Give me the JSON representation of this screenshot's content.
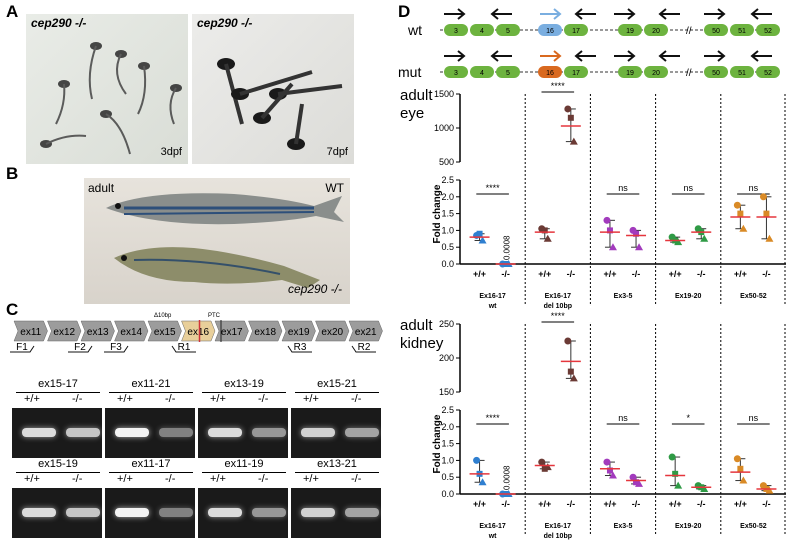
{
  "panels": {
    "A": {
      "letter": "A",
      "left_label": "cep290 -/-",
      "left_age": "3dpf",
      "right_label": "cep290 -/-",
      "right_age": "7dpf"
    },
    "B": {
      "letter": "B",
      "adult_label": "adult",
      "wt_label": "WT",
      "mut_label": "cep290 -/-"
    },
    "C": {
      "letter": "C",
      "exons": [
        "ex11",
        "ex12",
        "ex13",
        "ex14",
        "ex15",
        "ex16",
        "ex17",
        "ex18",
        "ex19",
        "ex20",
        "ex21"
      ],
      "delta_label": "Δ10bp",
      "ptc_label": "PTC",
      "primers": [
        "F1",
        "F2",
        "F3",
        "R1",
        "R3",
        "R2"
      ],
      "gel_row1": [
        "ex15-17",
        "ex11-21",
        "ex13-19",
        "ex15-21"
      ],
      "gel_row2": [
        "ex15-19",
        "ex11-17",
        "ex11-19",
        "ex13-21"
      ],
      "genotype_wt": "+/+",
      "genotype_mut": "-/-"
    },
    "D": {
      "letter": "D",
      "wt_label": "wt",
      "mut_label": "mut",
      "exons_left": [
        "3",
        "4",
        "5"
      ],
      "exons_mid": [
        "16",
        "17"
      ],
      "exons_mid2": [
        "19",
        "20"
      ],
      "exons_right": [
        "50",
        "51",
        "52"
      ],
      "break_mark": "//",
      "eye_title": "adult\neye",
      "kidney_title": "adult\nkidney",
      "ylabel": "Fold change",
      "group_labels": [
        "Ex16-17\nwt",
        "Ex16-17\ndel 10bp",
        "Ex3-5",
        "Ex19-20",
        "Ex50-52"
      ],
      "sig_eye": [
        "****",
        "****",
        "ns",
        "ns",
        "ns"
      ],
      "sig_kidney": [
        "****",
        "****",
        "ns",
        "*",
        "ns"
      ],
      "annotation_eye": "0.0008",
      "annotation_kidney": "0.0008"
    }
  },
  "chart_data": [
    {
      "type": "scatter",
      "title": "adult eye",
      "ylabel": "Fold change",
      "yticks_lower": [
        "0.0",
        "0.5",
        "1.0",
        "1.5",
        "2.0",
        "2.5"
      ],
      "yticks_upper": [
        "500",
        "1000",
        "1500"
      ],
      "groups": [
        "Ex16-17 wt",
        "Ex16-17 del 10bp",
        "Ex3-5",
        "Ex19-20",
        "Ex50-52"
      ],
      "genotypes": [
        "+/+",
        "-/-"
      ],
      "series": [
        {
          "group": "Ex16-17 wt",
          "genotype": "+/+",
          "mean": 0.8,
          "points": [
            0.85,
            0.9,
            0.7
          ]
        },
        {
          "group": "Ex16-17 wt",
          "genotype": "-/-",
          "mean": 0.0008,
          "points": [
            0.0,
            0.0,
            0.0
          ]
        },
        {
          "group": "Ex16-17 del 10bp",
          "genotype": "+/+",
          "mean": 0.95,
          "points": [
            1.05,
            1.0,
            0.75
          ]
        },
        {
          "group": "Ex16-17 del 10bp",
          "genotype": "-/-",
          "mean": 1030,
          "points": [
            1280,
            1150,
            800
          ]
        },
        {
          "group": "Ex3-5",
          "genotype": "+/+",
          "mean": 0.95,
          "points": [
            1.3,
            1.0,
            0.5
          ]
        },
        {
          "group": "Ex3-5",
          "genotype": "-/-",
          "mean": 0.85,
          "points": [
            1.0,
            0.9,
            0.5
          ]
        },
        {
          "group": "Ex19-20",
          "genotype": "+/+",
          "mean": 0.7,
          "points": [
            0.8,
            0.7,
            0.65
          ]
        },
        {
          "group": "Ex19-20",
          "genotype": "-/-",
          "mean": 0.95,
          "points": [
            1.05,
            0.95,
            0.75
          ]
        },
        {
          "group": "Ex50-52",
          "genotype": "+/+",
          "mean": 1.4,
          "points": [
            1.75,
            1.5,
            1.05
          ]
        },
        {
          "group": "Ex50-52",
          "genotype": "-/-",
          "mean": 1.4,
          "points": [
            2.0,
            1.5,
            0.75
          ]
        }
      ]
    },
    {
      "type": "scatter",
      "title": "adult kidney",
      "ylabel": "Fold change",
      "yticks_lower": [
        "0.0",
        "0.5",
        "1.0",
        "1.5",
        "2.0",
        "2.5"
      ],
      "yticks_upper": [
        "150",
        "200",
        "250"
      ],
      "groups": [
        "Ex16-17 wt",
        "Ex16-17 del 10bp",
        "Ex3-5",
        "Ex19-20",
        "Ex50-52"
      ],
      "genotypes": [
        "+/+",
        "-/-"
      ],
      "series": [
        {
          "group": "Ex16-17 wt",
          "genotype": "+/+",
          "mean": 0.6,
          "points": [
            1.0,
            0.6,
            0.35
          ]
        },
        {
          "group": "Ex16-17 wt",
          "genotype": "-/-",
          "mean": 0.0008,
          "points": [
            0.0,
            0.0,
            0.0
          ]
        },
        {
          "group": "Ex16-17 del 10bp",
          "genotype": "+/+",
          "mean": 0.85,
          "points": [
            0.95,
            0.75,
            0.8
          ]
        },
        {
          "group": "Ex16-17 del 10bp",
          "genotype": "-/-",
          "mean": 195,
          "points": [
            225,
            180,
            170
          ]
        },
        {
          "group": "Ex3-5",
          "genotype": "+/+",
          "mean": 0.75,
          "points": [
            0.95,
            0.7,
            0.55
          ]
        },
        {
          "group": "Ex3-5",
          "genotype": "-/-",
          "mean": 0.4,
          "points": [
            0.5,
            0.35,
            0.3
          ]
        },
        {
          "group": "Ex19-20",
          "genotype": "+/+",
          "mean": 0.55,
          "points": [
            1.1,
            0.6,
            0.25
          ]
        },
        {
          "group": "Ex19-20",
          "genotype": "-/-",
          "mean": 0.2,
          "points": [
            0.25,
            0.2,
            0.15
          ]
        },
        {
          "group": "Ex50-52",
          "genotype": "+/+",
          "mean": 0.65,
          "points": [
            1.05,
            0.75,
            0.4
          ]
        },
        {
          "group": "Ex50-52",
          "genotype": "-/-",
          "mean": 0.15,
          "points": [
            0.25,
            0.15,
            0.1
          ]
        }
      ]
    }
  ],
  "colors": {
    "mean_line": "#e5363d",
    "wt_exon": "#6db33f",
    "mut_exon16": "#d9691f",
    "wt_exon16": "#7aaee0",
    "group_colors": [
      "#2f7fd0",
      "#6b3a35",
      "#a23bbd",
      "#2f9a45",
      "#d98a26"
    ]
  }
}
